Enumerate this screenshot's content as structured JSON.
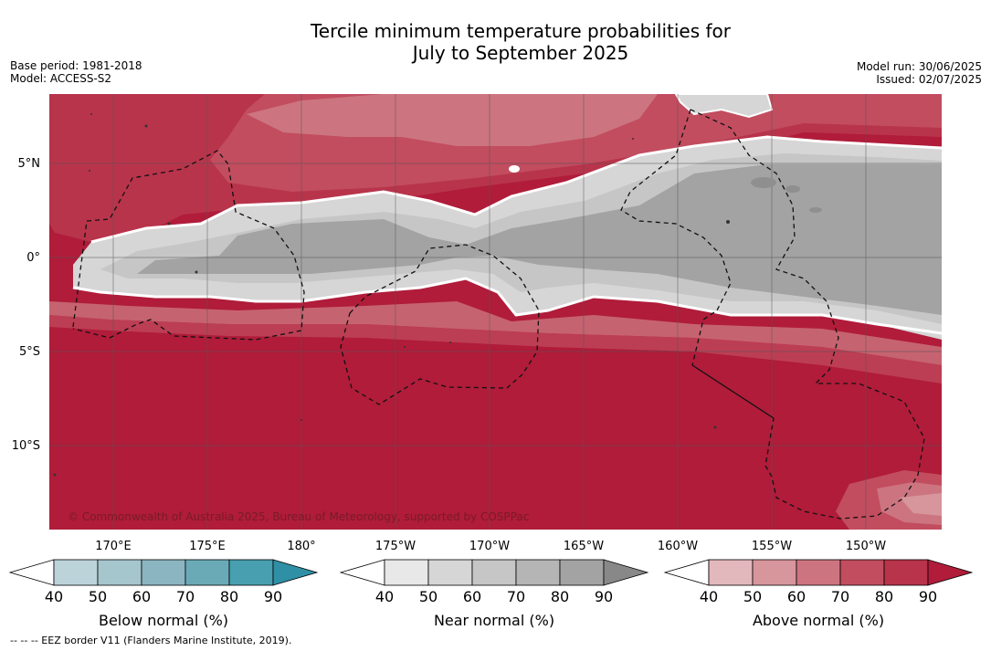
{
  "title_line1": "Tercile minimum temperature probabilities for",
  "title_line2": "July to September 2025",
  "meta_left": {
    "base_period": "Base period: 1981-2018",
    "model": "Model: ACCESS-S2"
  },
  "meta_right": {
    "model_run": "Model run: 30/06/2025",
    "issued": "Issued: 02/07/2025"
  },
  "copyright": "© Commonwealth of Australia 2025, Bureau of Meteorology, supported by COSPPac",
  "footer": "--  --  -- EEZ border V11 (Flanders Marine Institute, 2019).",
  "map": {
    "lat_labels": [
      "5°N",
      "0°",
      "5°S",
      "10°S"
    ],
    "lon_labels": [
      "170°E",
      "175°E",
      "180°",
      "175°W",
      "170°W",
      "165°W",
      "160°W",
      "155°W",
      "150°W"
    ]
  },
  "colorbars": [
    {
      "name": "Below normal (%)",
      "ticks": [
        "40",
        "50",
        "60",
        "70",
        "80",
        "90"
      ],
      "colors": [
        "#ffffff",
        "#bcd3da",
        "#a6c6cd",
        "#8bb6c1",
        "#6aaab6",
        "#479fb0",
        "#2f8fa4"
      ]
    },
    {
      "name": "Near normal (%)",
      "ticks": [
        "40",
        "50",
        "60",
        "70",
        "80",
        "90"
      ],
      "colors": [
        "#ffffff",
        "#e8e8e8",
        "#d6d6d6",
        "#c6c6c6",
        "#b5b5b5",
        "#a3a3a3",
        "#888888"
      ]
    },
    {
      "name": "Above normal (%)",
      "ticks": [
        "40",
        "50",
        "60",
        "70",
        "80",
        "90"
      ],
      "colors": [
        "#ffffff",
        "#e3b8bd",
        "#d7959c",
        "#cc7580",
        "#c24d5f",
        "#b8344b",
        "#b01c3a"
      ]
    }
  ]
}
